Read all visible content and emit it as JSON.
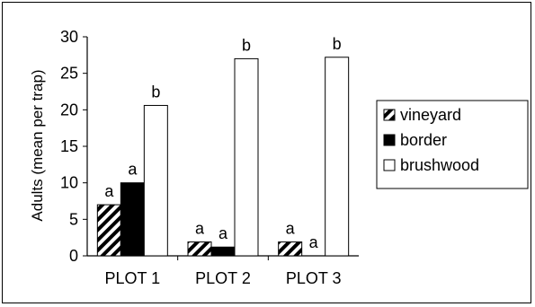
{
  "chart_data": {
    "type": "bar",
    "categories": [
      "PLOT 1",
      "PLOT 2",
      "PLOT 3"
    ],
    "series": [
      {
        "name": "vineyard",
        "values": [
          7.0,
          1.9,
          1.9
        ],
        "letters": [
          "a",
          "a",
          "a"
        ],
        "fill": "hatch"
      },
      {
        "name": "border",
        "values": [
          10.0,
          1.2,
          0.0
        ],
        "letters": [
          "a",
          "a",
          "a"
        ],
        "fill": "#000000"
      },
      {
        "name": "brushwood",
        "values": [
          20.6,
          27.0,
          27.2
        ],
        "letters": [
          "b",
          "b",
          "b"
        ],
        "fill": "#ffffff"
      }
    ],
    "ylabel": "Adults (mean per trap)",
    "xlabel": "",
    "ylim": [
      0,
      30
    ],
    "yticks": [
      0,
      5,
      10,
      15,
      20,
      25,
      30
    ],
    "grid": false,
    "legend_position": "right"
  }
}
